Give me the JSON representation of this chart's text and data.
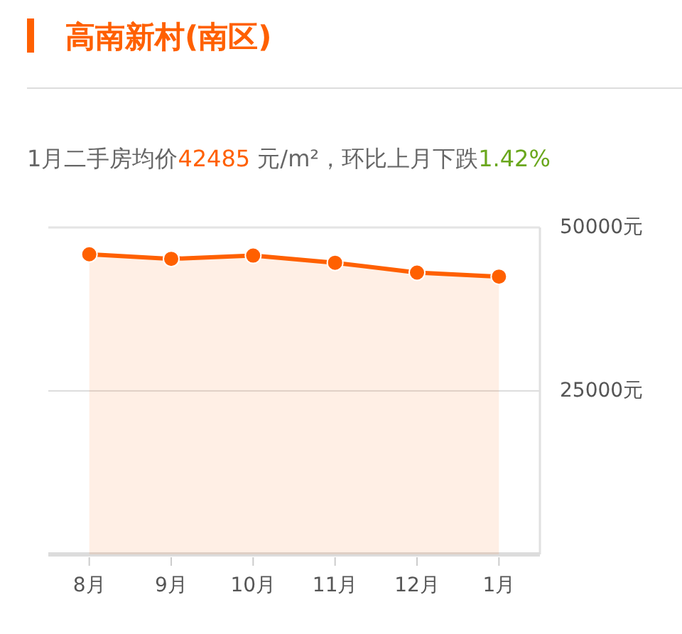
{
  "chart_data": {
    "type": "area",
    "title": "高南新村(南区)",
    "subtitle": "1月二手房均价42485 元/m²，环比上月下跌1.42%",
    "categories": [
      "8月",
      "9月",
      "10月",
      "11月",
      "12月",
      "1月"
    ],
    "series": [
      {
        "color": "#ff6000",
        "values": [
          45900,
          45200,
          45700,
          44600,
          43100,
          42485
        ]
      }
    ],
    "ylim": [
      0,
      50000
    ],
    "yticks": [
      {
        "value": 25000,
        "label": "25000元"
      },
      {
        "value": 50000,
        "label": "50000元"
      }
    ],
    "grid": "y",
    "marker": "circle"
  }
}
